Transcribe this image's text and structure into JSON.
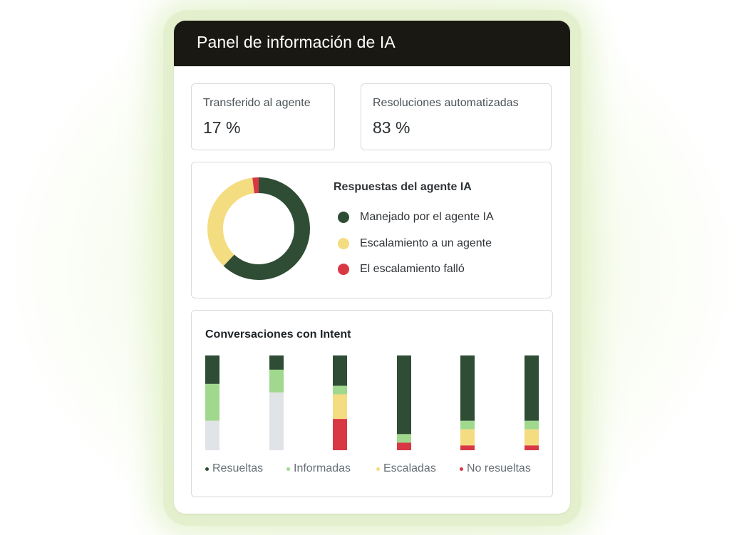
{
  "panel": {
    "title": "Panel de información de IA"
  },
  "kpis": {
    "transferred": {
      "label": "Transferido al agente",
      "value": "17 %"
    },
    "automated": {
      "label": "Resoluciones automatizadas",
      "value": "83 %"
    }
  },
  "responses": {
    "title": "Respuestas del agente IA",
    "segments": [
      {
        "label": "Manejado por el agente IA",
        "value": 62,
        "color": "#2f4d35"
      },
      {
        "label": "Escalamiento a un agente",
        "value": 36,
        "color": "#f4dc80"
      },
      {
        "label": "El escalamiento falló",
        "value": 2,
        "color": "#d83844"
      }
    ]
  },
  "conversations": {
    "title": "Conversaciones con Intent",
    "legend": [
      {
        "label": "Resueltas",
        "color": "#2f4d35"
      },
      {
        "label": "Informadas",
        "color": "#a0d98e"
      },
      {
        "label": "Escaladas",
        "color": "#f4dc80"
      },
      {
        "label": "No resueltas",
        "color": "#d83844"
      }
    ],
    "chart_data": {
      "type": "bar",
      "stacked": true,
      "categories": [
        "",
        "",
        "",
        "",
        "",
        ""
      ],
      "series": [
        {
          "name": "Resueltas",
          "values": [
            30,
            15,
            32,
            83,
            69,
            69
          ],
          "color": "#2f4d35"
        },
        {
          "name": "Informadas",
          "values": [
            39,
            24,
            9,
            9,
            9,
            9
          ],
          "color": "#a0d98e"
        },
        {
          "name": "Escaladas",
          "values": [
            0,
            0,
            26,
            0,
            17,
            17
          ],
          "color": "#f4dc80"
        },
        {
          "name": "No resueltas",
          "values": [
            0,
            0,
            33,
            8,
            5,
            5
          ],
          "color": "#d83844"
        },
        {
          "name": "",
          "values": [
            31,
            61,
            0,
            0,
            0,
            0
          ],
          "color": "#e0e4e7"
        }
      ],
      "ylim": [
        0,
        100
      ]
    }
  }
}
